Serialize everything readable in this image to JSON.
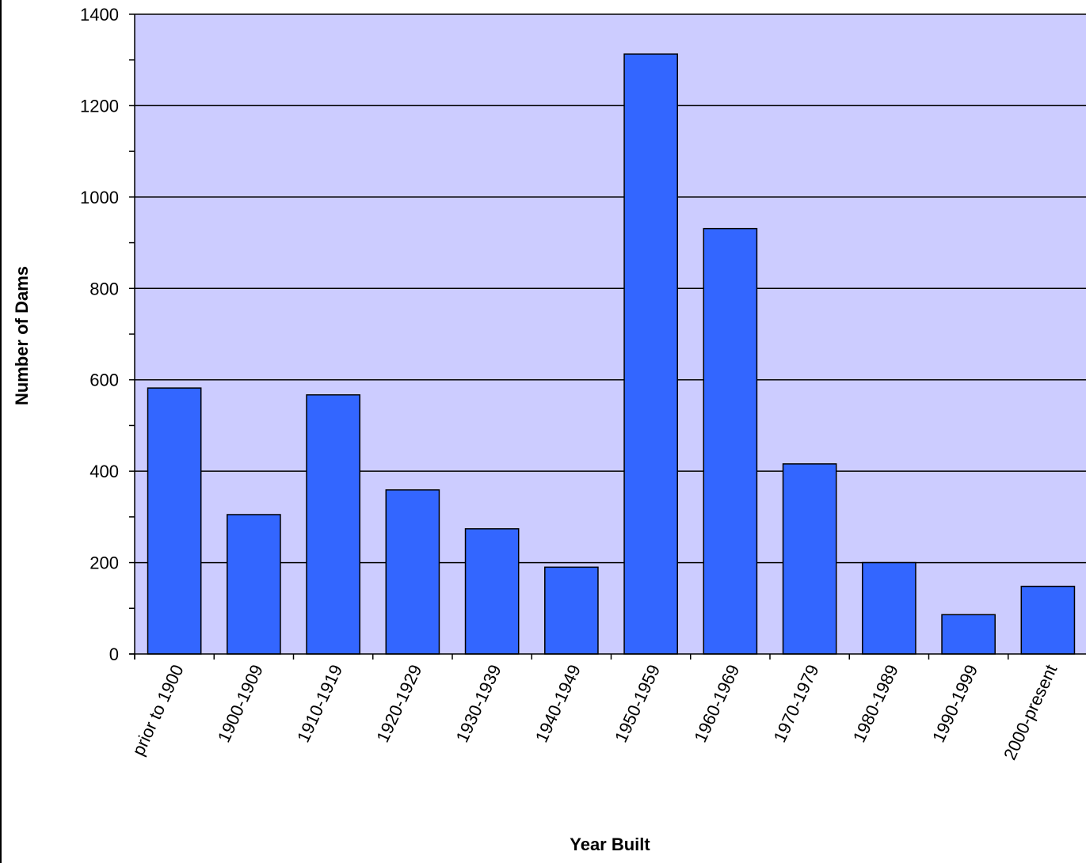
{
  "chart_data": {
    "type": "bar",
    "title": "",
    "xlabel": "Year Built",
    "ylabel": "Number of Dams",
    "categories": [
      "prior to 1900",
      "1900-1909",
      "1910-1919",
      "1920-1929",
      "1930-1939",
      "1940-1949",
      "1950-1959",
      "1960-1969",
      "1970-1979",
      "1980-1989",
      "1990-1999",
      "2000-present"
    ],
    "values": [
      582,
      305,
      567,
      359,
      274,
      190,
      1313,
      931,
      416,
      200,
      86,
      148
    ],
    "ylim": [
      0,
      1400
    ],
    "yticks": [
      0,
      200,
      400,
      600,
      800,
      1000,
      1200,
      1400
    ],
    "grid": true,
    "legend": "none"
  },
  "colors": {
    "plot_background": "#CCCCFF",
    "bar_fill": "#3366FF",
    "bar_stroke": "#000000",
    "gridline": "#000000",
    "axis": "#000000"
  }
}
